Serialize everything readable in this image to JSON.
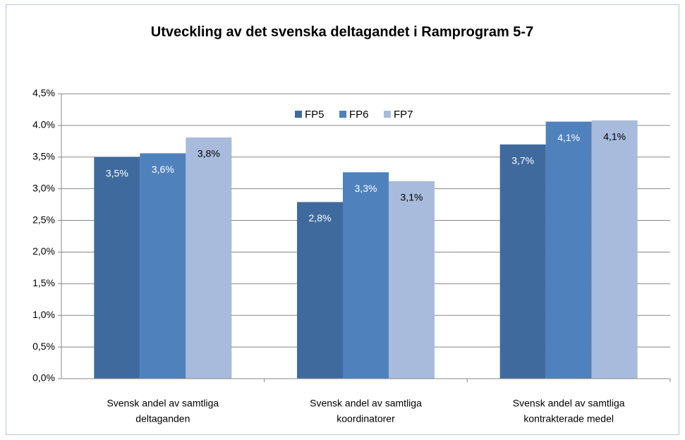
{
  "chart_data": {
    "type": "bar",
    "title": "Utveckling av det svenska deltagandet i Ramprogram 5-7",
    "categories": [
      [
        "Svensk andel av samtliga",
        "deltaganden"
      ],
      [
        "Svensk andel av samtliga",
        "koordinatorer"
      ],
      [
        "Svensk andel av samtliga",
        "kontrakterade medel"
      ]
    ],
    "series": [
      {
        "name": "FP5",
        "color": "#3f6a9e",
        "label_color": "#ffffff",
        "values": [
          3.5,
          2.79,
          3.7
        ],
        "value_labels": [
          "3,5%",
          "2,8%",
          "3,7%"
        ]
      },
      {
        "name": "FP6",
        "color": "#4f81bd",
        "label_color": "#ffffff",
        "values": [
          3.56,
          3.26,
          4.06
        ],
        "value_labels": [
          "3,6%",
          "3,3%",
          "4,1%"
        ]
      },
      {
        "name": "FP7",
        "color": "#a8bbdc",
        "label_color": "#000000",
        "values": [
          3.81,
          3.12,
          4.08
        ],
        "value_labels": [
          "3,8%",
          "3,1%",
          "4,1%"
        ]
      }
    ],
    "ylim": [
      0,
      4.5
    ],
    "yticks": [
      {
        "value": 0,
        "label": "0,0%"
      },
      {
        "value": 0.5,
        "label": "0,5%"
      },
      {
        "value": 1,
        "label": "1,0%"
      },
      {
        "value": 1.5,
        "label": "1,5%"
      },
      {
        "value": 2,
        "label": "2,0%"
      },
      {
        "value": 2.5,
        "label": "2,5%"
      },
      {
        "value": 3,
        "label": "3,0%"
      },
      {
        "value": 3.5,
        "label": "3,5%"
      },
      {
        "value": 4,
        "label": "4.0%"
      },
      {
        "value": 4.5,
        "label": "4,5%"
      }
    ],
    "grid": true,
    "legend": "top"
  }
}
